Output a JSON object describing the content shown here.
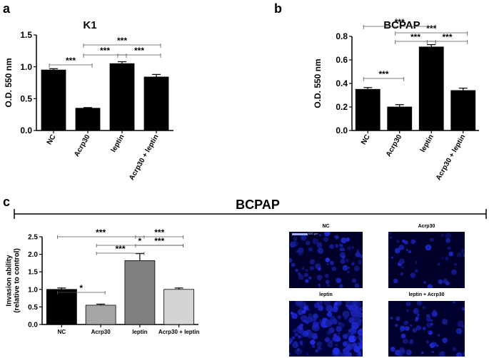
{
  "panels": {
    "a": "a",
    "b": "b",
    "c": "c"
  },
  "header_c": "BCPAP",
  "chart_data": [
    {
      "type": "bar",
      "title": "K1",
      "ylabel": "O.D. 550 nm",
      "xlabel": "",
      "categories": [
        "NC",
        "Acrp30",
        "leptin",
        "Acrp30 + leptin"
      ],
      "values": [
        0.95,
        0.35,
        1.05,
        0.84
      ],
      "errors": [
        0.02,
        0.01,
        0.03,
        0.04
      ],
      "bar_colors": [
        "#000000",
        "#000000",
        "#000000",
        "#000000"
      ],
      "ylim": [
        0,
        1.5
      ],
      "yticks": [
        "0.0",
        "0.5",
        "1.0",
        "1.5"
      ],
      "significance": [
        {
          "from": 0,
          "to": 1,
          "label": "***"
        },
        {
          "from": 1,
          "to": 2,
          "label": "***"
        },
        {
          "from": 2,
          "to": 3,
          "label": "***"
        },
        {
          "from": 1,
          "to": 3,
          "label": "***"
        }
      ]
    },
    {
      "type": "bar",
      "title": "BCPAP",
      "ylabel": "O.D. 550 nm",
      "xlabel": "",
      "categories": [
        "NC",
        "Acrp30",
        "leptin",
        "Acrp30 + leptin"
      ],
      "values": [
        0.35,
        0.2,
        0.71,
        0.34
      ],
      "errors": [
        0.015,
        0.02,
        0.02,
        0.02
      ],
      "bar_colors": [
        "#000000",
        "#000000",
        "#000000",
        "#000000"
      ],
      "ylim": [
        0,
        0.8
      ],
      "yticks": [
        "0.0",
        "0.2",
        "0.4",
        "0.6",
        "0.8"
      ],
      "significance": [
        {
          "from": 0,
          "to": 1,
          "label": "***"
        },
        {
          "from": 1,
          "to": 2,
          "label": "***"
        },
        {
          "from": 2,
          "to": 3,
          "label": "***"
        },
        {
          "from": 1,
          "to": 3,
          "label": "***"
        },
        {
          "from": 0,
          "to": 2,
          "label": "***"
        }
      ]
    },
    {
      "type": "bar",
      "title": "",
      "ylabel": "Invasion ability\n(relative to control)",
      "xlabel": "",
      "categories": [
        "NC",
        "Acrp30",
        "leptin",
        "Acrp30 + leptin"
      ],
      "values": [
        1.0,
        0.55,
        1.82,
        1.0
      ],
      "errors": [
        0.04,
        0.03,
        0.2,
        0.04
      ],
      "bar_colors": [
        "#000000",
        "#a6a6a6",
        "#808080",
        "#d4d4d4"
      ],
      "ylim": [
        0,
        2.5
      ],
      "yticks": [
        "0.0",
        "0.5",
        "1.0",
        "1.5",
        "2.0",
        "2.5"
      ],
      "significance": [
        {
          "from": 0,
          "to": 1,
          "label": "*"
        },
        {
          "from": 0,
          "to": 2,
          "label": "***"
        },
        {
          "from": 2,
          "to": 3,
          "label": "***"
        },
        {
          "from": 1,
          "to": 2,
          "label": "***"
        },
        {
          "from": 1,
          "to": 3,
          "label": "*"
        },
        {
          "from": 2,
          "to": 3,
          "label": "***",
          "tier": 2
        }
      ]
    }
  ],
  "micrographs": [
    {
      "label": "NC",
      "scale_bar": "500 µm"
    },
    {
      "label": "Acrp30"
    },
    {
      "label": "leptin"
    },
    {
      "label": "leptin + Acrp30"
    }
  ]
}
